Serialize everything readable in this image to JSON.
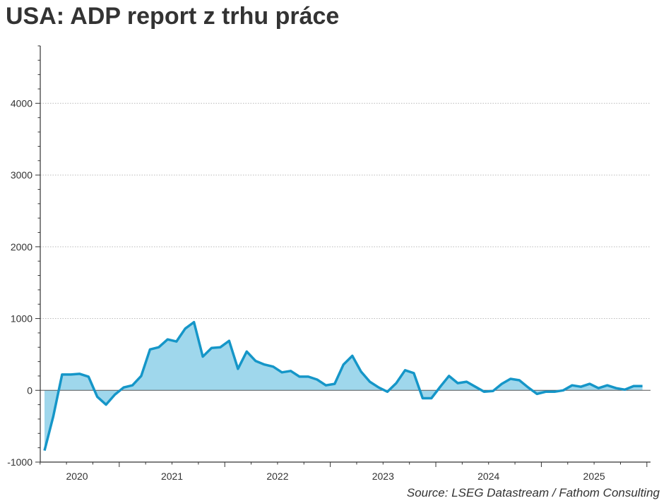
{
  "title": "USA: ADP report z trhu práce",
  "source": "Source: LSEG Datastream / Fathom Consulting",
  "colors": {
    "line": "#1596c8",
    "fill": "#9fd7ec",
    "grid": "#bbbbbb",
    "axis": "#333333",
    "zero": "#555555"
  },
  "chart_data": {
    "type": "area",
    "title": "USA: ADP report z trhu práce",
    "xlabel": "",
    "ylabel": "",
    "ylim": [
      -1000,
      4800
    ],
    "yticks": [
      -1000,
      0,
      1000,
      2000,
      3000,
      4000
    ],
    "ytick_labels": [
      "-1000",
      "0",
      "1000",
      "2000",
      "3000",
      "4000"
    ],
    "xticks": [
      "2020",
      "2021",
      "2022",
      "2023",
      "2024",
      "2025"
    ],
    "grid": "horizontal dotted",
    "x_start": "2020-04",
    "series": [
      {
        "frequency": "monthly",
        "values": [
          -840,
          -360,
          220,
          220,
          230,
          190,
          -90,
          -200,
          -60,
          40,
          70,
          200,
          570,
          600,
          710,
          680,
          860,
          950,
          470,
          590,
          600,
          690,
          300,
          540,
          410,
          360,
          330,
          250,
          270,
          190,
          190,
          150,
          70,
          90,
          360,
          480,
          260,
          120,
          40,
          -20,
          100,
          280,
          240,
          -110,
          -110,
          50,
          200,
          100,
          120,
          50,
          -20,
          -10,
          90,
          160,
          140,
          40,
          -50,
          -20,
          -20,
          0,
          70,
          50,
          90,
          30,
          70,
          30,
          10,
          60,
          60
        ]
      }
    ]
  }
}
